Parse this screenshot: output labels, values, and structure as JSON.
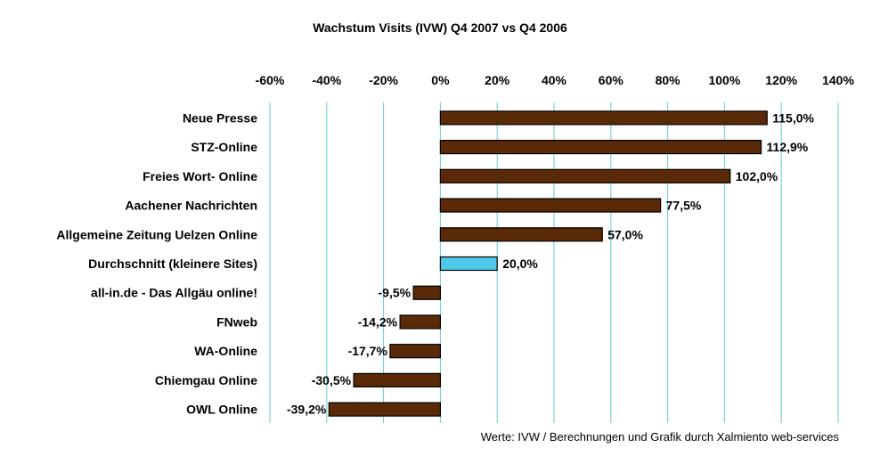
{
  "chart_data": {
    "type": "bar",
    "orientation": "horizontal",
    "title": "Wachstum Visits (IVW) Q4 2007 vs Q4 2006",
    "xlabel": "",
    "ylabel": "",
    "xlim": [
      -60,
      140
    ],
    "x_ticks": [
      -60,
      -40,
      -20,
      0,
      20,
      40,
      60,
      80,
      100,
      120,
      140
    ],
    "x_tick_labels": [
      "-60%",
      "-40%",
      "-20%",
      "0%",
      "20%",
      "40%",
      "60%",
      "80%",
      "100%",
      "120%",
      "140%"
    ],
    "x_axis_position": "top",
    "grid": true,
    "legend": "none",
    "categories": [
      "Neue Presse",
      "STZ-Online",
      "Freies Wort- Online",
      "Aachener Nachrichten",
      "Allgemeine Zeitung Uelzen Online",
      "Durchschnitt (kleinere Sites)",
      "all-in.de - Das Allgäu online!",
      "FNweb",
      "WA-Online",
      "Chiemgau Online",
      "OWL Online"
    ],
    "values": [
      115.0,
      112.9,
      102.0,
      77.5,
      57.0,
      20.0,
      -9.5,
      -14.2,
      -17.7,
      -30.5,
      -39.2
    ],
    "data_labels": [
      "115,0%",
      "112,9%",
      "102,0%",
      "77,5%",
      "57,0%",
      "20,0%",
      "-9,5%",
      "-14,2%",
      "-17,7%",
      "-30,5%",
      "-39,2%"
    ],
    "bar_colors": [
      "#5a2a08",
      "#5a2a08",
      "#5a2a08",
      "#5a2a08",
      "#5a2a08",
      "#4dc8e6",
      "#5a2a08",
      "#5a2a08",
      "#5a2a08",
      "#5a2a08",
      "#5a2a08"
    ],
    "grid_color": "#66cccc",
    "source_note": "Werte: IVW / Berechnungen und Grafik durch Xalmiento web-services"
  }
}
